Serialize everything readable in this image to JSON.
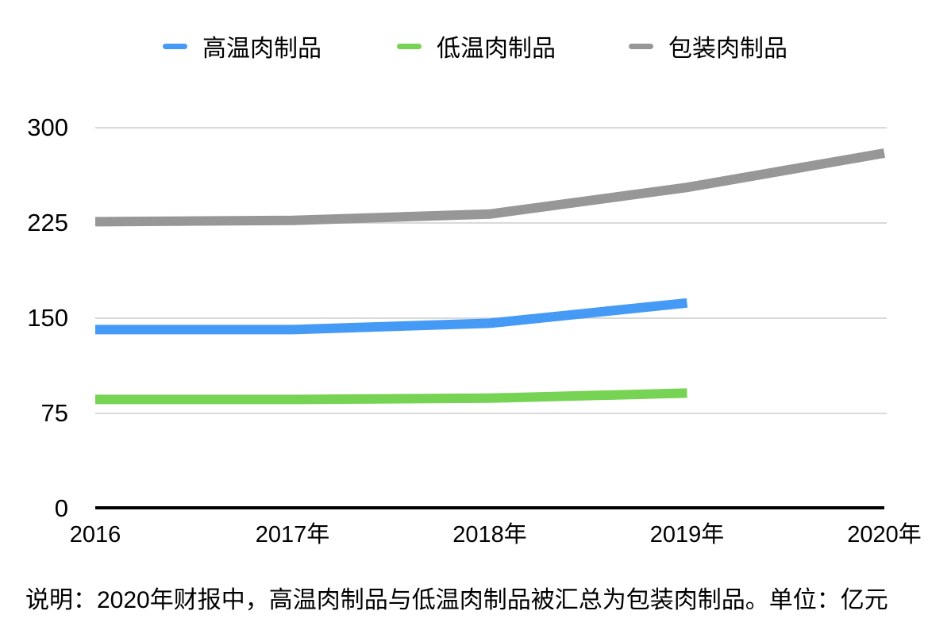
{
  "footnote": "说明：2020年财报中，高温肉制品与低温肉制品被汇总为包装肉制品。单位：亿元",
  "chart_data": {
    "type": "line",
    "title": "",
    "xlabel": "",
    "ylabel": "",
    "unit": "亿元",
    "categories": [
      "2016",
      "2017年",
      "2018年",
      "2019年",
      "2020年"
    ],
    "series": [
      {
        "name": "高温肉制品",
        "color": "#459AF5",
        "values": [
          141,
          141,
          146,
          162,
          null
        ]
      },
      {
        "name": "低温肉制品",
        "color": "#77D353",
        "values": [
          86,
          86,
          87,
          91,
          null
        ]
      },
      {
        "name": "包装肉制品",
        "color": "#979797",
        "values": [
          226,
          227,
          232,
          253,
          280
        ]
      }
    ],
    "y_ticks": [
      0,
      75,
      150,
      225,
      300
    ],
    "ylim": [
      0,
      300
    ],
    "grid": true,
    "legend_position": "top",
    "gridline_color": "#D9D9D9",
    "axis_color": "#000000",
    "background_color": "#FFFFFF"
  }
}
